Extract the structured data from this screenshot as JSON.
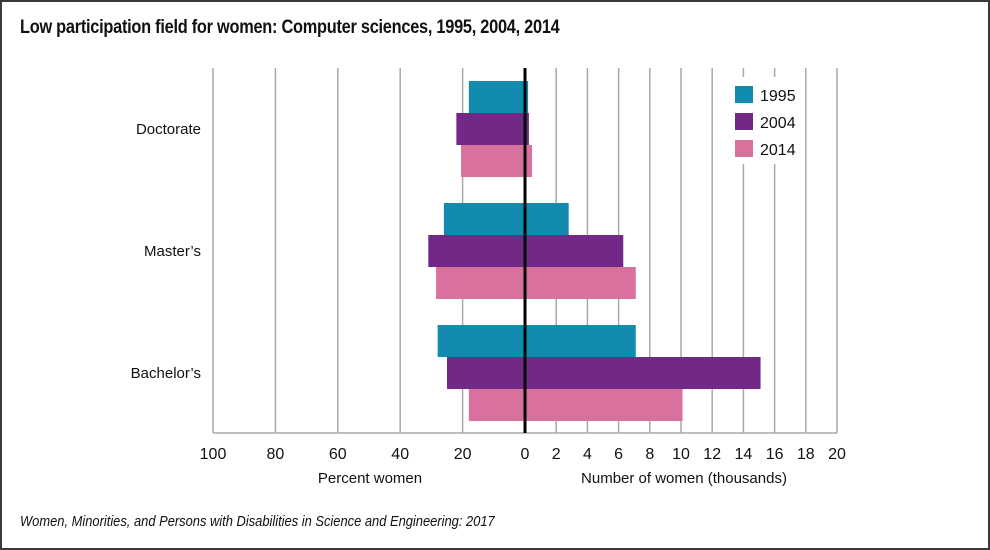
{
  "chart_data": {
    "type": "bar",
    "orientation": "horizontal",
    "layout": "back-to-back",
    "title": "Low participation field for women: Computer sciences, 1995, 2004, 2014",
    "source": "Women, Minorities, and Persons with Disabilities in Science and Engineering: 2017",
    "categories": [
      "Doctorate",
      "Master’s",
      "Bachelor’s"
    ],
    "left_axis": {
      "label": "Percent women",
      "range": [
        100,
        0
      ],
      "ticks": [
        "100",
        "80",
        "60",
        "40",
        "20"
      ]
    },
    "right_axis": {
      "label": "Number of women (thousands)",
      "range": [
        0,
        20
      ],
      "ticks": [
        "0",
        "2",
        "4",
        "6",
        "8",
        "10",
        "12",
        "14",
        "16",
        "18",
        "20"
      ]
    },
    "grid": true,
    "legend": {
      "position": "top-right",
      "entries": [
        "1995",
        "2004",
        "2014"
      ]
    },
    "series": [
      {
        "name": "1995",
        "color": "#138BAF",
        "percent_women": [
          18,
          26,
          28
        ],
        "number_thousands": [
          0.2,
          2.8,
          7.1
        ]
      },
      {
        "name": "2004",
        "color": "#722887",
        "percent_women": [
          22,
          31,
          25
        ],
        "number_thousands": [
          0.25,
          6.3,
          15.1
        ]
      },
      {
        "name": "2014",
        "color": "#D9719E",
        "percent_women": [
          20.5,
          28.5,
          18
        ],
        "number_thousands": [
          0.45,
          7.1,
          10.1
        ]
      }
    ]
  }
}
